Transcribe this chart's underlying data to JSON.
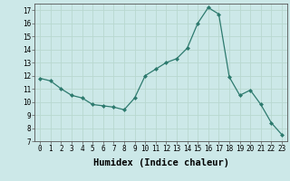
{
  "x": [
    0,
    1,
    2,
    3,
    4,
    5,
    6,
    7,
    8,
    9,
    10,
    11,
    12,
    13,
    14,
    15,
    16,
    17,
    18,
    19,
    20,
    21,
    22,
    23
  ],
  "y": [
    11.8,
    11.6,
    11.0,
    10.5,
    10.3,
    9.8,
    9.7,
    9.6,
    9.4,
    10.3,
    12.0,
    12.5,
    13.0,
    13.3,
    14.1,
    16.0,
    17.2,
    16.7,
    11.9,
    10.5,
    10.9,
    9.8,
    8.4,
    7.5
  ],
  "line_color": "#2d7a6e",
  "marker": "D",
  "marker_size": 2.0,
  "bg_color": "#cce8e8",
  "grid_color": "#b8d8d0",
  "xlabel": "Humidex (Indice chaleur)",
  "ylim": [
    7,
    17.5
  ],
  "xlim": [
    -0.5,
    23.5
  ],
  "yticks": [
    7,
    8,
    9,
    10,
    11,
    12,
    13,
    14,
    15,
    16,
    17
  ],
  "xticks": [
    0,
    1,
    2,
    3,
    4,
    5,
    6,
    7,
    8,
    9,
    10,
    11,
    12,
    13,
    14,
    15,
    16,
    17,
    18,
    19,
    20,
    21,
    22,
    23
  ],
  "tick_label_fontsize": 5.5,
  "xlabel_fontsize": 7.5
}
